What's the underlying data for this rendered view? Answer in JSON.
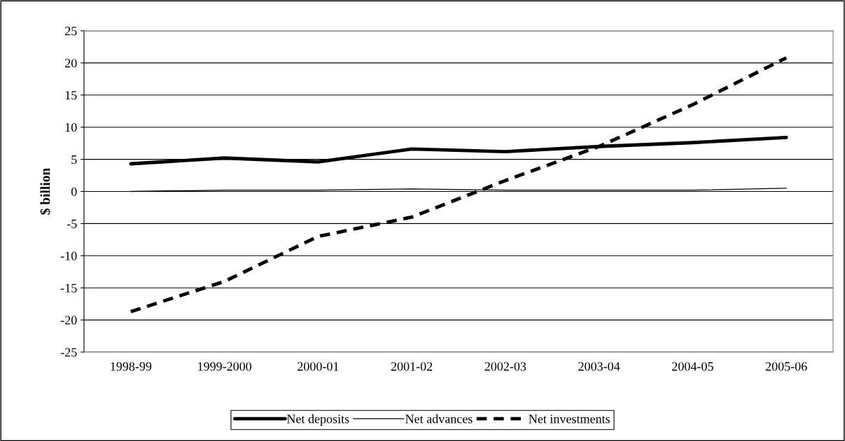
{
  "chart_data": {
    "type": "line",
    "ylabel": "$ billion",
    "categories": [
      "1998-99",
      "1999-2000",
      "2000-01",
      "2001-02",
      "2002-03",
      "2003-04",
      "2004-05",
      "2005-06"
    ],
    "series": [
      {
        "name": "Net deposits",
        "color": "#000000",
        "line_style": "solid",
        "values": [
          4.3,
          5.2,
          4.6,
          6.6,
          6.2,
          7.0,
          7.6,
          8.4
        ]
      },
      {
        "name": "Net advances",
        "color": "#000000",
        "line_style": "solid",
        "values": [
          0.0,
          0.2,
          0.2,
          0.4,
          0.2,
          0.2,
          0.2,
          0.5
        ]
      },
      {
        "name": "Net investments",
        "color": "#000000",
        "line_style": "dashed",
        "values": [
          -18.7,
          -14.0,
          -7.0,
          -4.0,
          1.7,
          7.0,
          13.5,
          20.8
        ]
      }
    ],
    "ylim": [
      -25,
      25
    ],
    "yticks": [
      -25,
      -20,
      -15,
      -10,
      -5,
      0,
      5,
      10,
      15,
      20,
      25
    ],
    "grid": "y",
    "legend": "bottom",
    "marker": "none"
  }
}
